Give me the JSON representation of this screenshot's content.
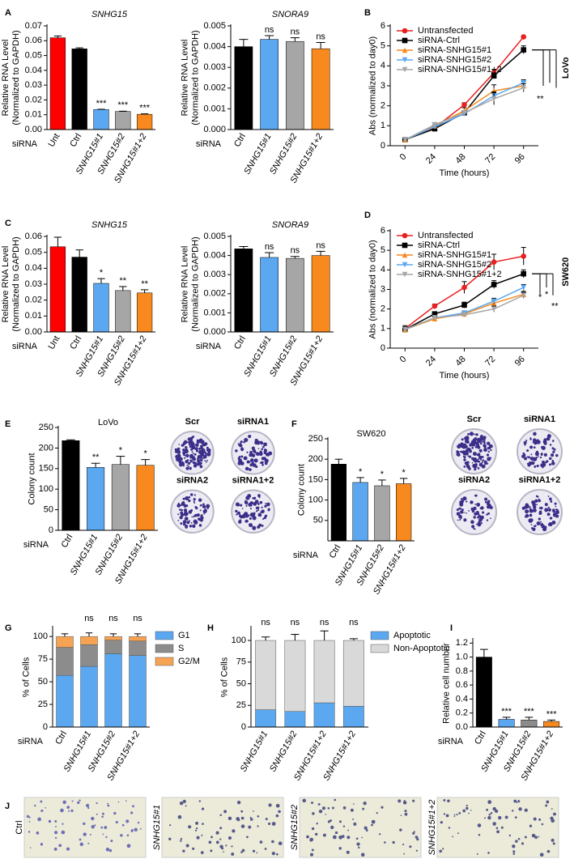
{
  "chart_data": [
    {
      "type": "bar",
      "panel": "A",
      "title": "SNHG15",
      "ylabel": [
        "Relative RNA Level",
        "(Normalized to GAPDH)"
      ],
      "xgroup": "siRNA",
      "categories": [
        "Unt",
        "Ctrl",
        "SNHG15#1",
        "SNHG15#2",
        "SNHG15#1+2"
      ],
      "values": [
        0.062,
        0.0545,
        0.0135,
        0.0122,
        0.0103
      ],
      "errors": [
        0.0012,
        0.0007,
        0.0002,
        0.0002,
        0.0003
      ],
      "colors": [
        "#ff0000",
        "#000000",
        "#5ba8f0",
        "#a6a6a6",
        "#f7891e"
      ],
      "annotations": [
        null,
        null,
        "***",
        "***",
        "***"
      ],
      "ylim": [
        0,
        0.07
      ],
      "yticks": [
        {
          "value": 0,
          "label": "0.00"
        },
        {
          "value": 0.01,
          "label": "0.01"
        },
        {
          "value": 0.02,
          "label": "0.02"
        },
        {
          "value": 0.03,
          "label": "0.03"
        },
        {
          "value": 0.04,
          "label": "0.04"
        },
        {
          "value": 0.05,
          "label": "0.05"
        },
        {
          "value": 0.06,
          "label": "0.06"
        },
        {
          "value": 0.07,
          "label": "0.07"
        }
      ]
    },
    {
      "type": "bar",
      "title": "SNORA9",
      "ylabel": [
        "Relative RNA Level",
        "(Normalized to GAPDH)"
      ],
      "xgroup": "siRNA",
      "categories": [
        "Ctrl",
        "SNHG15#1",
        "SNHG15#2",
        "SNHG15#1+2"
      ],
      "values": [
        0.004,
        0.00435,
        0.00425,
        0.0039
      ],
      "errors": [
        0.00035,
        0.00018,
        0.00018,
        0.0003
      ],
      "colors": [
        "#000000",
        "#5ba8f0",
        "#a6a6a6",
        "#f7891e"
      ],
      "annotations": [
        null,
        "ns",
        "ns",
        "ns"
      ],
      "ylim": [
        0,
        0.005
      ],
      "yticks": [
        {
          "value": 0,
          "label": "0.000"
        },
        {
          "value": 0.001,
          "label": "0.001"
        },
        {
          "value": 0.002,
          "label": "0.002"
        },
        {
          "value": 0.003,
          "label": "0.003"
        },
        {
          "value": 0.004,
          "label": "0.004"
        },
        {
          "value": 0.005,
          "label": "0.005"
        }
      ]
    },
    {
      "type": "line",
      "panel": "B",
      "ylabel": "Abs (normalized to day0)",
      "xlabel": "Time (hours)",
      "cell_line": "LoVo",
      "significance": "**",
      "x": [
        0,
        24,
        48,
        72,
        96
      ],
      "xlim": [
        -12,
        108
      ],
      "xticks": [
        0,
        24,
        48,
        72,
        96
      ],
      "ylim": [
        0,
        6
      ],
      "yticks": [
        0,
        1,
        2,
        3,
        4,
        5,
        6
      ],
      "series": [
        {
          "name": "Untransfected",
          "color": "#e8201e",
          "marker": "circle",
          "values": [
            0.3,
            0.9,
            2.05,
            3.65,
            5.45
          ],
          "errors": [
            0.05,
            0.1,
            0.1,
            0.15,
            0.05
          ]
        },
        {
          "name": "siRNA-Ctrl",
          "color": "#000000",
          "marker": "square",
          "values": [
            0.3,
            0.85,
            1.65,
            3.5,
            4.8
          ],
          "errors": [
            0.05,
            0.1,
            0.1,
            0.15,
            0.2
          ]
        },
        {
          "name": "siRNA-SNHG15#1",
          "color": "#f7891e",
          "marker": "triangle",
          "values": [
            0.3,
            1.0,
            1.75,
            2.75,
            3.0
          ],
          "errors": [
            0.05,
            0.15,
            0.15,
            0.3,
            0.2
          ]
        },
        {
          "name": "siRNA-SNHG15#2",
          "color": "#5ba8f0",
          "marker": "triangle-down",
          "values": [
            0.3,
            0.95,
            1.6,
            2.5,
            3.15
          ],
          "errors": [
            0.05,
            0.1,
            0.1,
            0.2,
            0.15
          ]
        },
        {
          "name": "siRNA-SNHG15#1+2",
          "color": "#a6a6a6",
          "marker": "triangle-down",
          "values": [
            0.3,
            1.05,
            1.65,
            2.35,
            2.9
          ],
          "errors": [
            0.05,
            0.1,
            0.1,
            0.3,
            0.2
          ]
        }
      ]
    },
    {
      "type": "bar",
      "panel": "C",
      "title": "SNHG15",
      "ylabel": [
        "Relative RNA Level",
        "(Normalized to GAPDH)"
      ],
      "xgroup": "siRNA",
      "categories": [
        "Unt",
        "Ctrl",
        "SNHG15#1",
        "SNHG15#2",
        "SNHG15#1+2"
      ],
      "values": [
        0.0535,
        0.047,
        0.0305,
        0.026,
        0.0245
      ],
      "errors": [
        0.006,
        0.0045,
        0.003,
        0.0025,
        0.002
      ],
      "colors": [
        "#ff0000",
        "#000000",
        "#5ba8f0",
        "#a6a6a6",
        "#f7891e"
      ],
      "annotations": [
        null,
        null,
        "*",
        "**",
        "**"
      ],
      "ylim": [
        0,
        0.06
      ],
      "yticks": [
        {
          "value": 0,
          "label": "0.00"
        },
        {
          "value": 0.01,
          "label": "0.01"
        },
        {
          "value": 0.02,
          "label": "0.02"
        },
        {
          "value": 0.03,
          "label": "0.03"
        },
        {
          "value": 0.04,
          "label": "0.04"
        },
        {
          "value": 0.05,
          "label": "0.05"
        },
        {
          "value": 0.06,
          "label": "0.06"
        }
      ]
    },
    {
      "type": "bar",
      "title": "SNORA9",
      "ylabel": [
        "Relative RNA Level",
        "(Normalized to GAPDH)"
      ],
      "xgroup": "siRNA",
      "categories": [
        "Ctrl",
        "SNHG15#1",
        "SNHG15#2",
        "SNHG15#1+2"
      ],
      "values": [
        0.00435,
        0.0039,
        0.00385,
        0.004
      ],
      "errors": [
        0.00012,
        0.00025,
        0.0001,
        0.00022
      ],
      "colors": [
        "#000000",
        "#5ba8f0",
        "#a6a6a6",
        "#f7891e"
      ],
      "annotations": [
        null,
        "ns",
        "ns",
        "ns"
      ],
      "ylim": [
        0,
        0.005
      ],
      "yticks": [
        {
          "value": 0,
          "label": "0.000"
        },
        {
          "value": 0.001,
          "label": "0.001"
        },
        {
          "value": 0.002,
          "label": "0.002"
        },
        {
          "value": 0.003,
          "label": "0.003"
        },
        {
          "value": 0.004,
          "label": "0.004"
        },
        {
          "value": 0.005,
          "label": "0.005"
        }
      ]
    },
    {
      "type": "line",
      "panel": "D",
      "ylabel": "Abs (normalized to day0)",
      "xlabel": "Time (hours)",
      "cell_line": "SW620",
      "significance": [
        "*",
        "*",
        "**"
      ],
      "x": [
        0,
        24,
        48,
        72,
        96
      ],
      "xlim": [
        -12,
        108
      ],
      "xticks": [
        0,
        24,
        48,
        72,
        96
      ],
      "ylim": [
        0,
        6
      ],
      "yticks": [
        0,
        1,
        2,
        3,
        4,
        5,
        6
      ],
      "series": [
        {
          "name": "Untransfected",
          "color": "#e8201e",
          "marker": "circle",
          "values": [
            1.0,
            2.15,
            3.1,
            4.4,
            4.7
          ],
          "errors": [
            0.15,
            0.1,
            0.3,
            0.4,
            0.45
          ]
        },
        {
          "name": "siRNA-Ctrl",
          "color": "#000000",
          "marker": "square",
          "values": [
            0.95,
            1.75,
            2.2,
            3.25,
            3.8
          ],
          "errors": [
            0.15,
            0.1,
            0.15,
            0.2,
            0.2
          ]
        },
        {
          "name": "siRNA-SNHG15#1",
          "color": "#f7891e",
          "marker": "triangle",
          "values": [
            0.95,
            1.5,
            1.75,
            2.3,
            2.75
          ],
          "errors": [
            0.1,
            0.1,
            0.1,
            0.15,
            0.15
          ]
        },
        {
          "name": "siRNA-SNHG15#2",
          "color": "#5ba8f0",
          "marker": "triangle-down",
          "values": [
            0.95,
            1.55,
            1.8,
            2.4,
            3.1
          ],
          "errors": [
            0.1,
            0.1,
            0.1,
            0.15,
            0.15
          ]
        },
        {
          "name": "siRNA-SNHG15#1+2",
          "color": "#a6a6a6",
          "marker": "triangle-down",
          "values": [
            0.95,
            1.55,
            1.7,
            2.0,
            2.7
          ],
          "errors": [
            0.1,
            0.1,
            0.1,
            0.15,
            0.15
          ]
        }
      ]
    },
    {
      "type": "bar",
      "panel": "E",
      "title": "LoVo",
      "ylabel": "Colony count",
      "xgroup": "siRNA",
      "categories": [
        "Ctrl",
        "SNHG15#1",
        "SNHG15#2",
        "SNHG15#1+2"
      ],
      "values": [
        218,
        153,
        160,
        158
      ],
      "errors": [
        2,
        10,
        20,
        14
      ],
      "colors": [
        "#000000",
        "#5ba8f0",
        "#a6a6a6",
        "#f7891e"
      ],
      "annotations": [
        null,
        "**",
        "*",
        "*"
      ],
      "ylim": [
        0,
        250
      ],
      "yticks": [
        0,
        50,
        100,
        150,
        200,
        250
      ],
      "images": [
        "Scr",
        "siRNA1",
        "siRNA2",
        "siRNA1+2"
      ]
    },
    {
      "type": "bar",
      "panel": "F",
      "title": "SW620",
      "ylabel": "Colony count",
      "xgroup": "siRNA",
      "categories": [
        "Ctrl",
        "SNHG15#1",
        "SNHG15#2",
        "SNHG15#1+2"
      ],
      "values": [
        188,
        143,
        135,
        140
      ],
      "errors": [
        12,
        12,
        14,
        13
      ],
      "colors": [
        "#000000",
        "#5ba8f0",
        "#a6a6a6",
        "#f7891e"
      ],
      "annotations": [
        null,
        "*",
        "*",
        "*"
      ],
      "ylim": [
        0,
        250
      ],
      "yticks": [
        50,
        100,
        150,
        200,
        250
      ],
      "images": [
        "Scr",
        "siRNA1",
        "siRNA2",
        "siRNA1+2"
      ]
    },
    {
      "type": "stacked",
      "panel": "G",
      "ylabel": "% of Cells",
      "xgroup": "siRNA",
      "categories": [
        "Ctrl",
        "SNHG15#1",
        "SNHG15#2",
        "SNHG15#1+2"
      ],
      "series": [
        {
          "name": "G1",
          "color": "#5ba8f0",
          "values": [
            57,
            67,
            81,
            79
          ],
          "errors": [
            2,
            7,
            1,
            4
          ]
        },
        {
          "name": "S",
          "color": "#8c8c8c",
          "values": [
            31,
            24,
            15,
            16
          ],
          "errors": [
            2,
            4,
            2,
            3
          ]
        },
        {
          "name": "G2/M",
          "color": "#f7a354",
          "values": [
            12,
            9,
            4,
            5
          ],
          "errors": [
            3,
            4,
            3,
            3
          ]
        }
      ],
      "annotations": [
        null,
        "ns",
        "ns",
        "ns"
      ],
      "ylim": [
        0,
        110
      ],
      "yticks": [
        0,
        25,
        50,
        75,
        100
      ]
    },
    {
      "type": "stacked",
      "panel": "H",
      "ylabel": "% of Cells",
      "categories": [
        "SNHG15#1",
        "SNHG15#2",
        "SNHG15#1+2",
        "SNHG15#1+2"
      ],
      "series": [
        {
          "name": "Apoptotic",
          "color": "#5ba8f0",
          "values": [
            20,
            18,
            28,
            24
          ],
          "errors": [
            4,
            7,
            11,
            2
          ]
        },
        {
          "name": "Non-Apoptotic",
          "color": "#d9d9d9",
          "values": [
            80,
            82,
            72,
            76
          ],
          "errors": [
            4,
            7,
            11,
            2
          ]
        }
      ],
      "annotations": [
        "ns",
        "ns",
        "ns",
        "ns"
      ],
      "ylim": [
        0,
        115
      ],
      "yticks": [
        0,
        25,
        50,
        75,
        100
      ]
    },
    {
      "type": "bar",
      "panel": "I",
      "ylabel": "Relative cell number",
      "xgroup": "siRNA",
      "categories": [
        "Ctrl",
        "SNHG15#1",
        "SNHG15#2",
        "SNHG15#1+2"
      ],
      "values": [
        1.0,
        0.11,
        0.1,
        0.08
      ],
      "errors": [
        0.11,
        0.03,
        0.04,
        0.02
      ],
      "colors": [
        "#000000",
        "#5ba8f0",
        "#8c8c8c",
        "#f7891e"
      ],
      "annotations": [
        null,
        "***",
        "***",
        "***"
      ],
      "ylim": [
        0,
        1.25
      ],
      "yticks": [
        {
          "value": 0,
          "label": "0.0"
        },
        {
          "value": 0.2,
          "label": "0.2"
        },
        {
          "value": 0.4,
          "label": "0.4"
        },
        {
          "value": 0.6,
          "label": "0.6"
        },
        {
          "value": 0.8,
          "label": "0.8"
        },
        {
          "value": 1.0,
          "label": "1.0"
        },
        {
          "value": 1.2,
          "label": "1.2"
        }
      ]
    }
  ],
  "panel_J": {
    "panel": "J",
    "images": [
      "Ctrl",
      "SNHG15#1",
      "SNHG15#2",
      "SNHG15#1+2"
    ]
  }
}
